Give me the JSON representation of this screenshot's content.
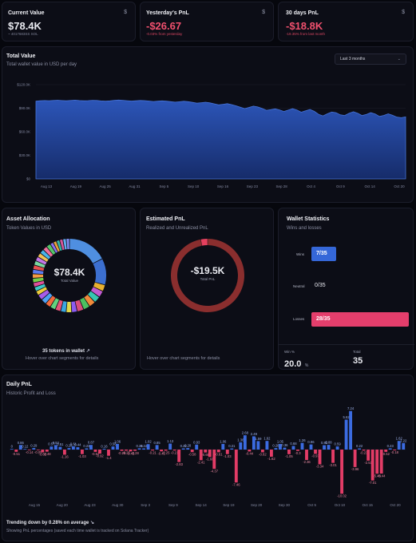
{
  "cards": {
    "current": {
      "title": "Current Value",
      "icon": "dollar-icon",
      "value": "$78.4K",
      "sub": "~ 4017683SS SOL"
    },
    "yesterday": {
      "title": "Yesterday's PnL",
      "icon": "dollar-icon",
      "value": "-$26.67",
      "sub": "-0.03% from yesterday"
    },
    "thirty": {
      "title": "30 days PnL",
      "icon": "dollar-icon",
      "value": "-$18.8K",
      "sub": "-19.35% from last month"
    }
  },
  "total_value": {
    "title": "Total Value",
    "subtitle": "Total wallet value in USD per day",
    "range": "Last 3 months",
    "chart_data": {
      "type": "area",
      "y_ticks": [
        "$120.0K",
        "$90.0K",
        "$60.0K",
        "$30.0K",
        "$0"
      ],
      "ylim": [
        0,
        120000
      ],
      "x_ticks": [
        "Aug 13",
        "Aug 19",
        "Aug 25",
        "Aug 31",
        "Sep 5",
        "Sep 10",
        "Sep 16",
        "Sep 23",
        "Sep 28",
        "Oct 4",
        "Oct 9",
        "Oct 14",
        "Oct 20"
      ],
      "values": [
        99000,
        99500,
        99800,
        99600,
        99900,
        100200,
        99800,
        99500,
        99900,
        100300,
        99800,
        99500,
        99700,
        100100,
        99900,
        99300,
        99000,
        99400,
        100000,
        100400,
        100100,
        99600,
        99200,
        99500,
        99900,
        99700,
        99200,
        98500,
        98900,
        99400,
        99000,
        98300,
        97700,
        98200,
        98800,
        98300,
        97400,
        96500,
        97000,
        97600,
        96800,
        95600,
        94300,
        95000,
        95800,
        94600,
        93000,
        91200,
        89500,
        91000,
        92600,
        91600,
        89800,
        87400,
        88200,
        89200,
        87900,
        85800,
        87600,
        89400,
        87800,
        84900,
        86700,
        88400,
        86000,
        82200,
        80200,
        82900,
        85100,
        84300,
        81600,
        80700,
        83500,
        85500,
        83500,
        80600,
        82100,
        84300,
        82700,
        79500,
        80800,
        82900,
        80900,
        78600,
        77900,
        78900
      ]
    }
  },
  "allocation": {
    "title": "Asset Allocation",
    "subtitle": "Token Values in USD",
    "center_value": "$78.4K",
    "center_label": "Total Value",
    "token_count": "35 tokens in wallet",
    "hint": "Hover over chart segments for details",
    "chart_data": {
      "type": "pie",
      "slices": [
        {
          "color": "#4f8fe0",
          "value": 18
        },
        {
          "color": "#3c6fd0",
          "value": 12
        },
        {
          "color": "#e8b12f",
          "value": 3
        },
        {
          "color": "#c15bd0",
          "value": 3
        },
        {
          "color": "#36c6b0",
          "value": 3
        },
        {
          "color": "#f08a3a",
          "value": 3
        },
        {
          "color": "#4cc060",
          "value": 3
        },
        {
          "color": "#d84e7c",
          "value": 3
        },
        {
          "color": "#8b5cf0",
          "value": 2.5
        },
        {
          "color": "#e0d84a",
          "value": 2.5
        },
        {
          "color": "#3aa6e0",
          "value": 2.5
        },
        {
          "color": "#e5557a",
          "value": 2.5
        },
        {
          "color": "#62d27e",
          "value": 2.5
        },
        {
          "color": "#f06a3c",
          "value": 2.5
        },
        {
          "color": "#4ea0f2",
          "value": 2.5
        },
        {
          "color": "#a85ce8",
          "value": 2.5
        },
        {
          "color": "#eccc3c",
          "value": 2
        },
        {
          "color": "#3cc8c8",
          "value": 2
        },
        {
          "color": "#dd4f9a",
          "value": 2
        },
        {
          "color": "#74d048",
          "value": 2
        },
        {
          "color": "#f29a44",
          "value": 2
        },
        {
          "color": "#5c7cf0",
          "value": 2
        },
        {
          "color": "#e74f4f",
          "value": 2
        },
        {
          "color": "#7ad6a0",
          "value": 2
        },
        {
          "color": "#c476e6",
          "value": 2
        },
        {
          "color": "#f0c054",
          "value": 2
        },
        {
          "color": "#48b4e8",
          "value": 2
        },
        {
          "color": "#ef6f9d",
          "value": 2
        },
        {
          "color": "#56c46a",
          "value": 2
        },
        {
          "color": "#8e6ff0",
          "value": 1.5
        },
        {
          "color": "#e8a23c",
          "value": 1.5
        },
        {
          "color": "#34b6a6",
          "value": 1.5
        },
        {
          "color": "#d6579a",
          "value": 1.5
        },
        {
          "color": "#5faef0",
          "value": 1.5
        },
        {
          "color": "#7f8cf5",
          "value": 1.5
        }
      ]
    }
  },
  "estimated": {
    "title": "Estimated PnL",
    "subtitle": "Realized and Unrealized PnL",
    "center_value": "-$19.5K",
    "center_label": "Total PnL",
    "hint": "Hover over chart segments for details",
    "chart_data": {
      "type": "pie",
      "slices": [
        {
          "label": "",
          "color": "#8a2e2e",
          "value": 97
        },
        {
          "label": "",
          "color": "#e5405e",
          "value": 3
        }
      ]
    }
  },
  "stats": {
    "title": "Wallet Statistics",
    "subtitle": "Wins and losses",
    "wins_label": "Wins",
    "wins_value": "7/35",
    "neutral_label": "Neutral",
    "neutral_value": "0/35",
    "losses_label": "Losses",
    "losses_value": "28/35",
    "win_pct_label": "Win %",
    "win_pct_value": "20.0",
    "win_pct_unit": "%",
    "total_label": "Total",
    "total_value": "35",
    "chart_data": {
      "type": "bar",
      "categories": [
        "Wins",
        "Neutral",
        "Losses"
      ],
      "values": [
        7,
        0,
        28
      ]
    }
  },
  "daily": {
    "title": "Daily PnL",
    "subtitle": "Historic Profit and Loss",
    "footer_title": "Trending down by 0.28% on average",
    "footer_sub": "Showing PnL percentages (saved each time wallet is tracked on Solana Tracker)",
    "chart_data": {
      "type": "bar",
      "x_ticks": [
        "Aug 15",
        "Aug 20",
        "Aug 23",
        "Aug 30",
        "Sep 3",
        "Sep 9",
        "Sep 14",
        "Sep 19",
        "Sep 20",
        "Sep 30",
        "Oct 5",
        "Oct 10",
        "Oct 15",
        "Oct 20"
      ],
      "values": [
        0,
        -0.51,
        0.86,
        0.12,
        -0.14,
        0.29,
        -0.05,
        -0.62,
        -0.48,
        0.57,
        0.84,
        0.51,
        -1.16,
        0.28,
        0.61,
        0.44,
        -1.03,
        0.23,
        0.87,
        -0.52,
        -0.92,
        0.16,
        -1.4,
        0.58,
        1.06,
        -0.29,
        -0.25,
        -0.41,
        -0.28,
        0.24,
        0.22,
        1.02,
        -0.21,
        0.85,
        -0.41,
        -0.25,
        1.13,
        -0.21,
        -2.83,
        0.22,
        0.28,
        -0.58,
        0.93,
        -2.41,
        -0.66,
        -1.68,
        -4.37,
        -0.61,
        1.06,
        -1.03,
        0.21,
        -7.46,
        1.36,
        2.68,
        -0.44,
        2.49,
        1.59,
        -0.62,
        1.62,
        -1.62,
        0.28,
        1.05,
        0.36,
        -1.05,
        0.68,
        -0.3,
        1.26,
        -2.36,
        0.96,
        -0.97,
        -3.34,
        0.82,
        0.88,
        -3.01,
        0.59,
        -10.02,
        5.62,
        7.24,
        -3.96,
        0.22,
        -0.23,
        -2.51,
        -7.01,
        -5.48,
        -5.44,
        -0.52,
        0.23,
        -0.18,
        1.62,
        1.22
      ],
      "labels": [
        "0",
        "-0.51",
        "0.86",
        "0.12",
        "-0.14",
        "0.29",
        "-0.05",
        "-0.62",
        "-0.48",
        "0.57",
        "0.84",
        "0.51",
        "-1.16",
        "0.28",
        "0.61",
        "0.44",
        "-1.03",
        "0.23",
        "0.87",
        "-0.52",
        "-0.92",
        "0.16",
        "-1.4",
        "0.58",
        "1.06",
        "-0.29",
        "-0.25",
        "-0.41",
        "-0.28",
        "0.24",
        "0.22",
        "1.02",
        "-0.21",
        "0.85",
        "-0.41",
        "-0.25",
        "1.13",
        "-0.21",
        "-2.83",
        "0.22",
        "0.28",
        "-0.58",
        "0.93",
        "-2.41",
        "-0.66",
        "-1.68",
        "-4.37",
        "-0.61",
        "1.06",
        "-1.03",
        "0.21",
        "-7.46",
        "1.36",
        "2.68",
        "-0.44",
        "2.49",
        "1.59",
        "-0.62",
        "1.62",
        "-1.62",
        "0.28",
        "1.05",
        "0.36",
        "-1.05",
        "0.68",
        "-0.3",
        "1.26",
        "-2.36",
        "0.96",
        "-0.97",
        "-3.34",
        "0.82",
        "0.88",
        "-3.01",
        "0.59",
        "-10.02",
        "5.62",
        "7.24",
        "-3.96",
        "0.22",
        "-0.23",
        "-2.51",
        "-7.01",
        "-5.48",
        "-5.44",
        "-0.52",
        "0.23",
        "-0.18",
        "1.62",
        "1.22"
      ],
      "colors": {
        "positive": "#3b6be0",
        "negative": "#e23c66"
      }
    }
  }
}
